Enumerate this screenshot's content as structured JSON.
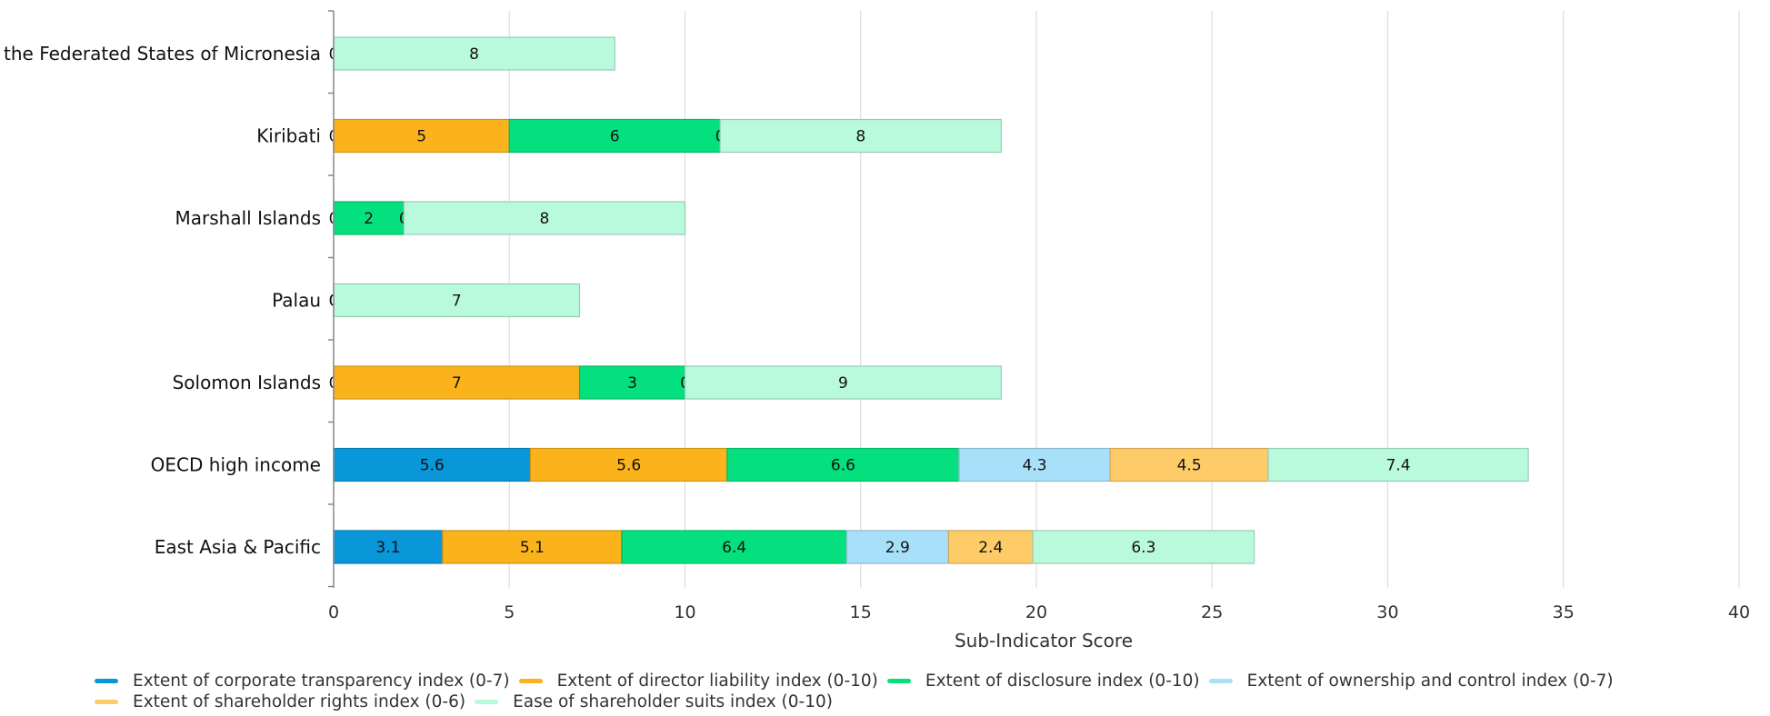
{
  "chart_data": {
    "type": "bar",
    "orientation": "horizontal",
    "stacked": true,
    "categories": [
      "the Federated States of Micronesia",
      "Kiribati",
      "Marshall Islands",
      "Palau",
      "Solomon Islands",
      "OECD high income",
      "East Asia & Pacific"
    ],
    "series": [
      {
        "name": "Extent of corporate transparency index (0-7)",
        "color": "#0a97d9",
        "values": [
          0,
          0,
          0,
          0,
          0,
          5.6,
          3.1
        ]
      },
      {
        "name": "Extent of director liability index (0-10)",
        "color": "#fbb31b",
        "values": [
          null,
          5,
          null,
          0,
          7,
          5.6,
          5.1
        ]
      },
      {
        "name": "Extent of disclosure index (0-10)",
        "color": "#05e07e",
        "values": [
          null,
          6,
          2,
          null,
          3,
          6.6,
          6.4
        ]
      },
      {
        "name": "Extent of ownership and control index (0-7)",
        "color": "#a8e0fa",
        "values": [
          null,
          0,
          0,
          null,
          0,
          4.3,
          2.9
        ]
      },
      {
        "name": "Extent of shareholder rights index (0-6)",
        "color": "#fdcb67",
        "values": [
          null,
          null,
          null,
          null,
          null,
          4.5,
          2.4
        ]
      },
      {
        "name": "Ease of shareholder suits index (0-10)",
        "color": "#b9f9dc",
        "values": [
          8,
          8,
          8,
          7,
          9,
          7.4,
          6.3
        ]
      }
    ],
    "xlabel": "Sub-Indicator Score",
    "ylabel": "",
    "xlim": [
      0,
      40
    ],
    "xticks": [
      0,
      5,
      10,
      15,
      20,
      25,
      30,
      35,
      40
    ],
    "grid": "vertical",
    "legend_position": "bottom"
  }
}
